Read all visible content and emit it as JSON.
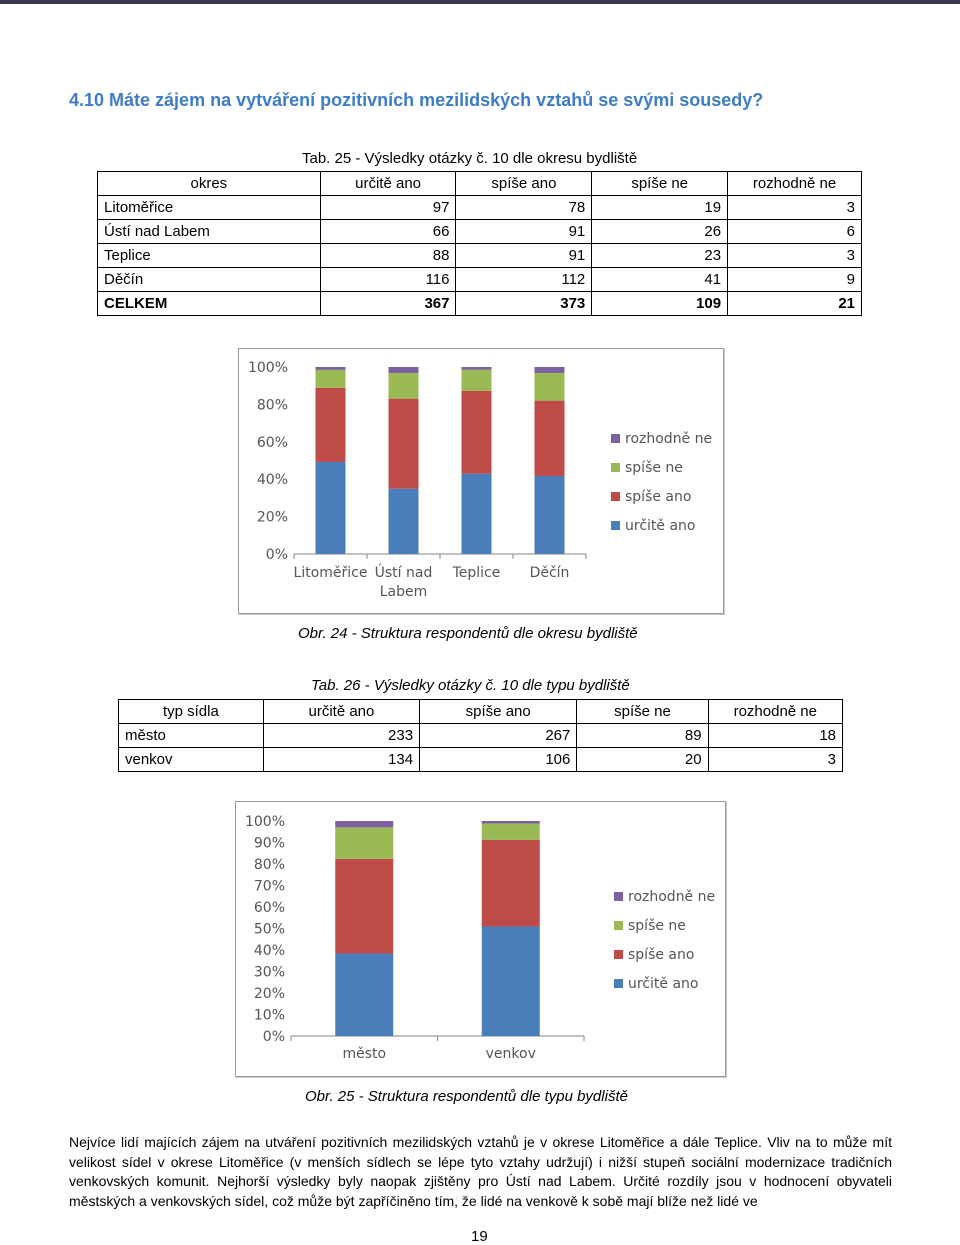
{
  "heading": "4.10 Máte zájem na vytváření pozitivních mezilidských vztahů se svými sousedy?",
  "table1": {
    "caption": "Tab. 25 - Výsledky otázky č. 10 dle okresu bydliště",
    "headers": [
      "okres",
      "určitě ano",
      "spíše ano",
      "spíše ne",
      "rozhodně ne"
    ],
    "rows": [
      [
        "Litoměřice",
        "97",
        "78",
        "19",
        "3"
      ],
      [
        "Ústí nad Labem",
        "66",
        "91",
        "26",
        "6"
      ],
      [
        "Teplice",
        "88",
        "91",
        "23",
        "3"
      ],
      [
        "Děčín",
        "116",
        "112",
        "41",
        "9"
      ],
      [
        "CELKEM",
        "367",
        "373",
        "109",
        "21"
      ]
    ]
  },
  "figure1_caption": "Obr. 24 - Struktura respondentů dle okresu bydliště",
  "table2": {
    "caption": "Tab. 26 - Výsledky otázky č. 10 dle typu bydliště",
    "headers": [
      "typ sídla",
      "určitě ano",
      "spíše ano",
      "spíše ne",
      "rozhodně ne"
    ],
    "rows": [
      [
        "město",
        "233",
        "267",
        "89",
        "18"
      ],
      [
        "venkov",
        "134",
        "106",
        "20",
        "3"
      ]
    ]
  },
  "figure2_caption": "Obr. 25 - Struktura respondentů dle typu bydliště",
  "body_text": "Nejvíce lidí majících zájem na utváření pozitivních mezilidských vztahů je v okrese Litoměřice a dále Teplice. Vliv na to může mít velikost sídel v okrese Litoměřice (v menších sídlech se lépe tyto vztahy udržují) i nižší stupeň sociální modernizace tradičních venkovských komunit. Nejhorší výsledky byly naopak zjištěny pro Ústí nad Labem. Určité rozdíly jsou v hodnocení obyvateli městských a venkovských sídel, což může být zapříčiněno tím, že lidé na venkově k sobě mají blíže než lidé ve",
  "page_number": "19",
  "colors": {
    "heading": "#3d7cc9",
    "urcite_ano": "#4a7ebb",
    "spise_ano": "#be4b48",
    "spise_ne": "#98b954",
    "rozhodne_ne": "#7d60a0"
  },
  "chart_data": [
    {
      "type": "bar",
      "stacked": "percent",
      "categories": [
        "Litoměřice",
        "Ústí nad Labem",
        "Teplice",
        "Děčín"
      ],
      "series": [
        {
          "name": "určitě ano",
          "values": [
            97,
            66,
            88,
            116
          ]
        },
        {
          "name": "spíše ano",
          "values": [
            78,
            91,
            91,
            112
          ]
        },
        {
          "name": "spíše ne",
          "values": [
            19,
            26,
            23,
            41
          ]
        },
        {
          "name": "rozhodně ne",
          "values": [
            3,
            6,
            3,
            9
          ]
        }
      ],
      "yticks": [
        "0%",
        "20%",
        "40%",
        "60%",
        "80%",
        "100%"
      ],
      "ylim": [
        0,
        100
      ],
      "legend": "right",
      "legend_order": [
        "rozhodně ne",
        "spíše ne",
        "spíše ano",
        "určitě ano"
      ]
    },
    {
      "type": "bar",
      "stacked": "percent",
      "categories": [
        "město",
        "venkov"
      ],
      "series": [
        {
          "name": "určitě ano",
          "values": [
            233,
            134
          ]
        },
        {
          "name": "spíše ano",
          "values": [
            267,
            106
          ]
        },
        {
          "name": "spíše ne",
          "values": [
            89,
            20
          ]
        },
        {
          "name": "rozhodně ne",
          "values": [
            18,
            3
          ]
        }
      ],
      "yticks": [
        "0%",
        "10%",
        "20%",
        "30%",
        "40%",
        "50%",
        "60%",
        "70%",
        "80%",
        "90%",
        "100%"
      ],
      "ylim": [
        0,
        100
      ],
      "legend": "right",
      "legend_order": [
        "rozhodně ne",
        "spíše ne",
        "spíše ano",
        "určitě ano"
      ]
    }
  ]
}
